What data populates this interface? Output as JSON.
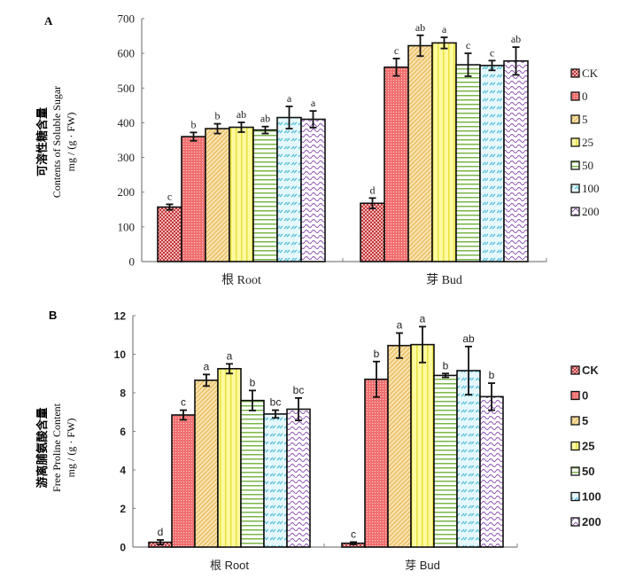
{
  "chart_data": [
    {
      "panel_label": "A",
      "type": "bar",
      "title": "",
      "ylabel_cn": "可溶性糖含量",
      "ylabel_en": "Contents of Soluble Sugar",
      "ylabel_unit": "mg / (g · FW)",
      "xlabel": "",
      "ylim": [
        0,
        700
      ],
      "yticks": [
        0,
        100,
        200,
        300,
        400,
        500,
        600,
        700
      ],
      "categories": [
        "根 Root",
        "芽 Bud"
      ],
      "legend_position": "right",
      "series": [
        {
          "name": "CK",
          "values": [
            157,
            168
          ],
          "errors": [
            8,
            15
          ],
          "letters": [
            "c",
            "d"
          ]
        },
        {
          "name": "0",
          "values": [
            360,
            560
          ],
          "errors": [
            12,
            25
          ],
          "letters": [
            "b",
            "c"
          ]
        },
        {
          "name": "5",
          "values": [
            383,
            622
          ],
          "errors": [
            14,
            30
          ],
          "letters": [
            "b",
            "ab"
          ]
        },
        {
          "name": "25",
          "values": [
            387,
            630
          ],
          "errors": [
            14,
            16
          ],
          "letters": [
            "ab",
            "a"
          ]
        },
        {
          "name": "50",
          "values": [
            379,
            567
          ],
          "errors": [
            10,
            33
          ],
          "letters": [
            "ab",
            "c"
          ]
        },
        {
          "name": "100",
          "values": [
            415,
            565
          ],
          "errors": [
            32,
            14
          ],
          "letters": [
            "a",
            "c"
          ]
        },
        {
          "name": "200",
          "values": [
            410,
            578
          ],
          "errors": [
            24,
            40
          ],
          "letters": [
            "a",
            "ab"
          ]
        }
      ]
    },
    {
      "panel_label": "B",
      "type": "bar",
      "title": "",
      "ylabel_cn": "游离脯氨酸含量",
      "ylabel_en": "Free Proline Content",
      "ylabel_unit": "mg / (g · FW)",
      "xlabel": "",
      "ylim": [
        0,
        12
      ],
      "yticks": [
        0,
        2,
        4,
        6,
        8,
        10,
        12
      ],
      "categories": [
        "根 Root",
        "芽 Bud"
      ],
      "legend_position": "right",
      "series": [
        {
          "name": "CK",
          "values": [
            0.25,
            0.2
          ],
          "errors": [
            0.12,
            0.06
          ],
          "letters": [
            "d",
            "c"
          ]
        },
        {
          "name": "0",
          "values": [
            6.85,
            8.7
          ],
          "errors": [
            0.25,
            0.92
          ],
          "letters": [
            "c",
            "b"
          ]
        },
        {
          "name": "5",
          "values": [
            8.65,
            10.45
          ],
          "errors": [
            0.3,
            0.65
          ],
          "letters": [
            "a",
            "a"
          ]
        },
        {
          "name": "25",
          "values": [
            9.25,
            10.5
          ],
          "errors": [
            0.25,
            0.93
          ],
          "letters": [
            "a",
            "a"
          ]
        },
        {
          "name": "50",
          "values": [
            7.6,
            8.9
          ],
          "errors": [
            0.52,
            0.1
          ],
          "letters": [
            "b",
            "b"
          ]
        },
        {
          "name": "100",
          "values": [
            6.9,
            9.15
          ],
          "errors": [
            0.2,
            1.25
          ],
          "letters": [
            "bc",
            "ab"
          ]
        },
        {
          "name": "200",
          "values": [
            7.15,
            7.8
          ],
          "errors": [
            0.58,
            0.7
          ],
          "letters": [
            "bc",
            "b"
          ]
        }
      ]
    }
  ],
  "series_styles": {
    "CK": {
      "fill": "#f4b6b6",
      "pattern": "checker",
      "ink": "#c0393b"
    },
    "0": {
      "fill": "#f07070",
      "pattern": "dots",
      "ink": "#c44"
    },
    "5": {
      "fill": "#fbe3b0",
      "pattern": "diag",
      "ink": "#e5b04a"
    },
    "25": {
      "fill": "#fffaa0",
      "pattern": "vert",
      "ink": "#e8e040"
    },
    "50": {
      "fill": "#ffffff",
      "pattern": "horiz",
      "ink": "#7ab648"
    },
    "100": {
      "fill": "#e6f8fc",
      "pattern": "dash",
      "ink": "#3fb6d8"
    },
    "200": {
      "fill": "#ffffff",
      "pattern": "wave",
      "ink": "#8a4fb2"
    }
  }
}
